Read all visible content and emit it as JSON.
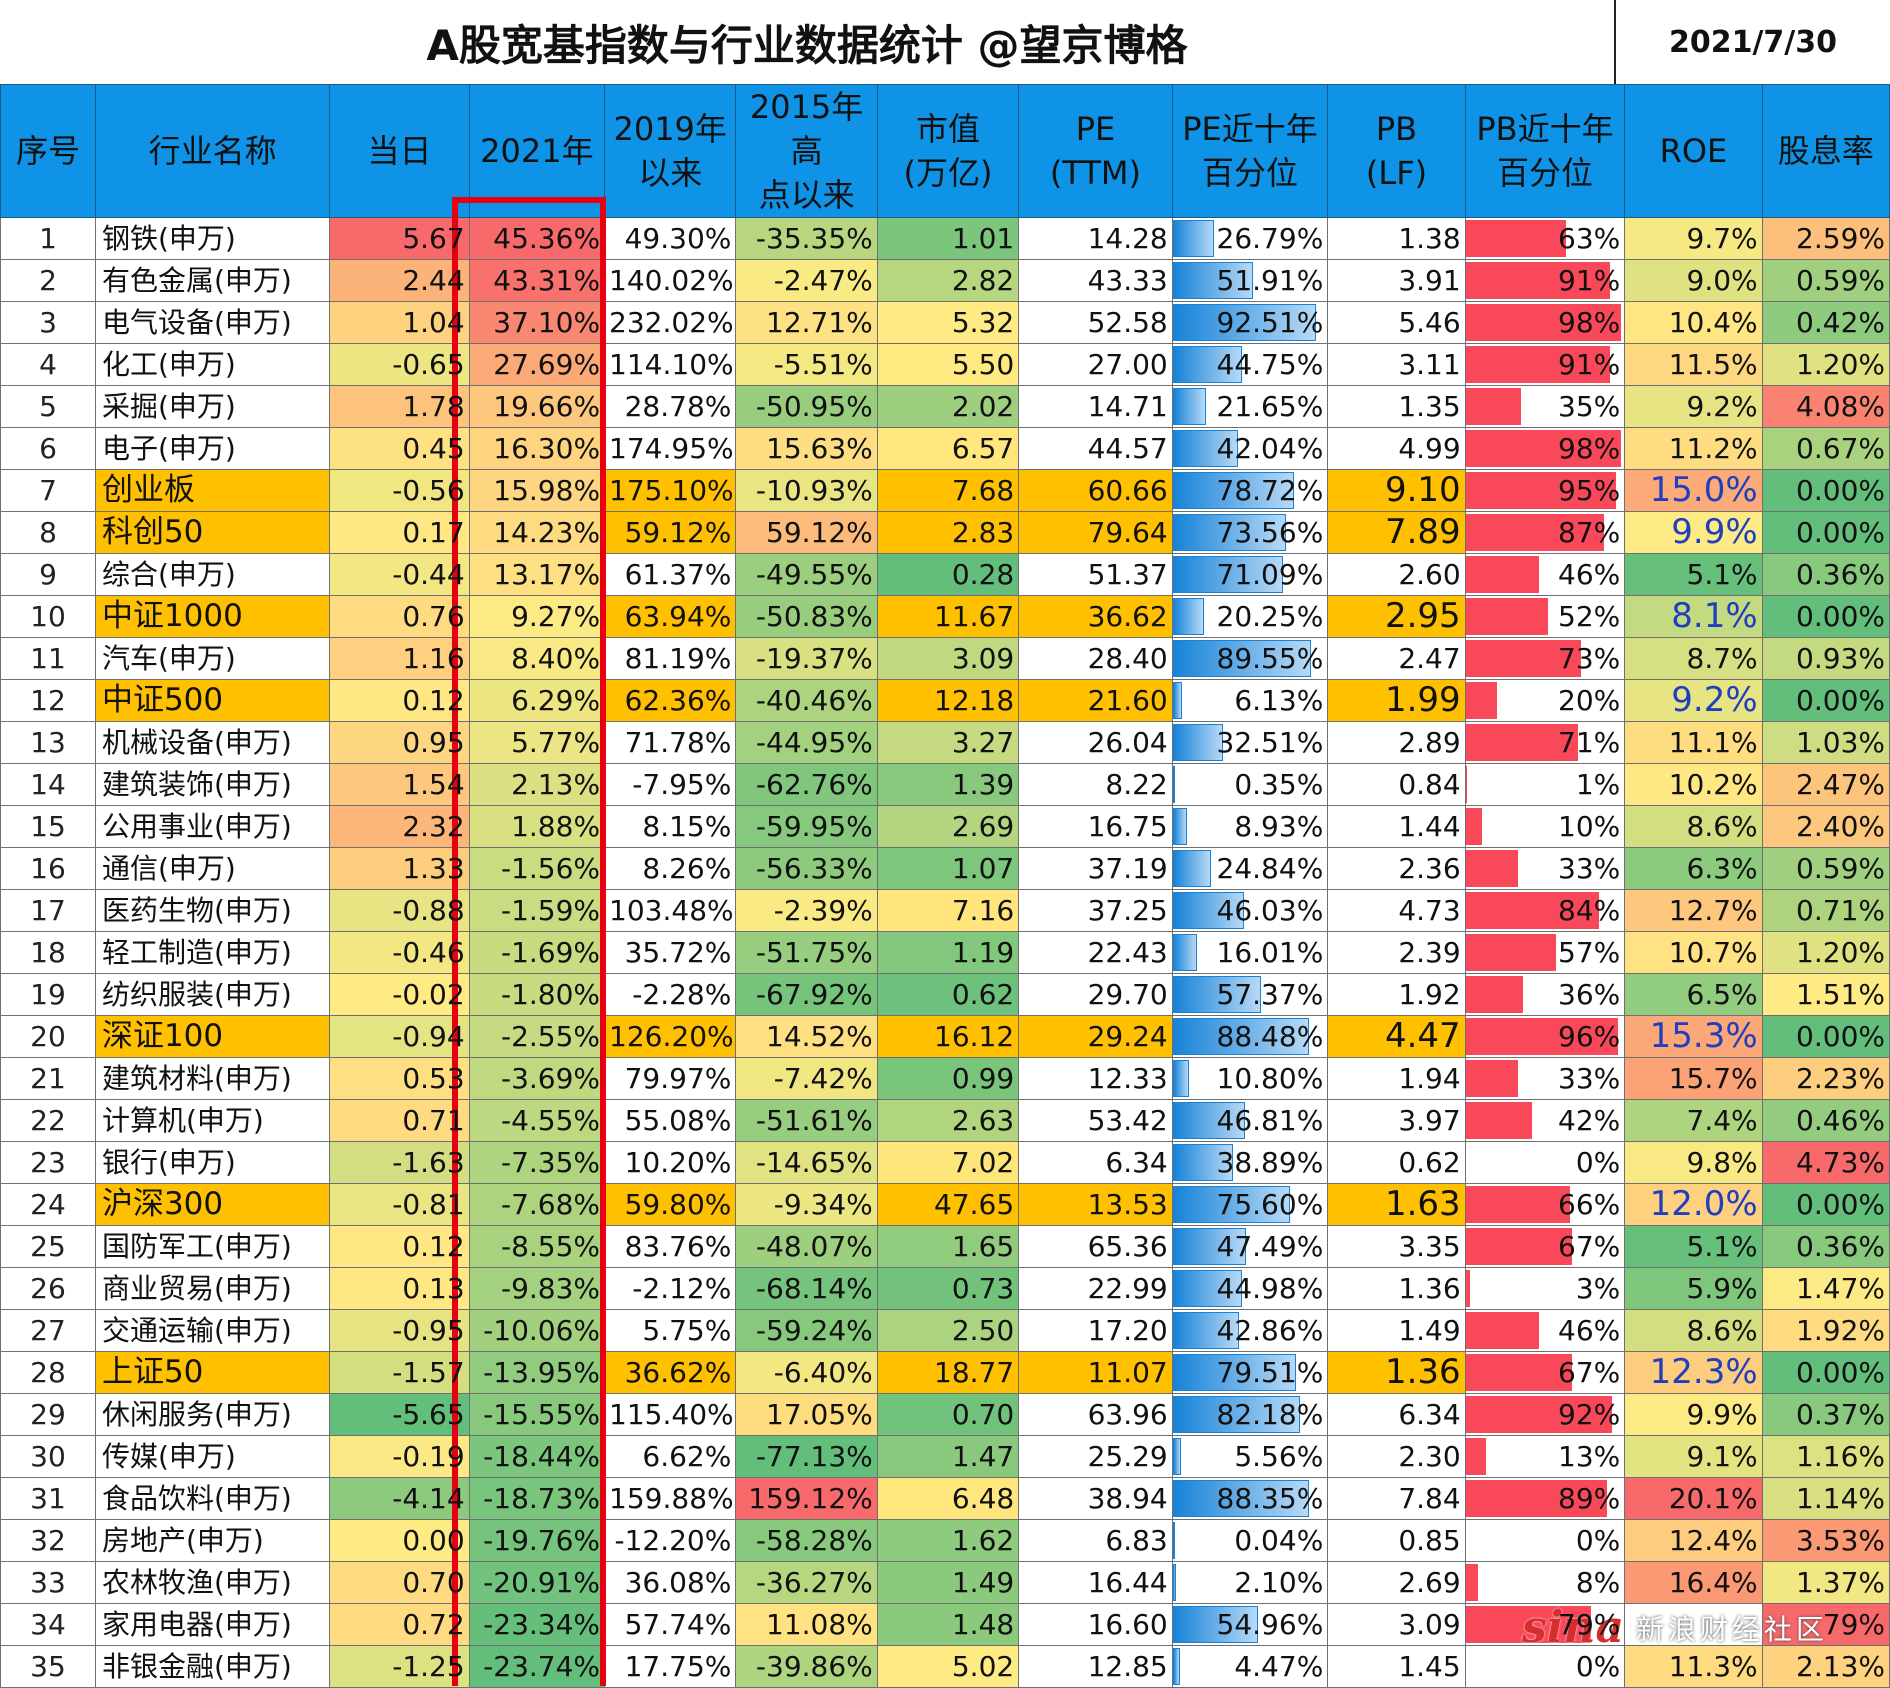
{
  "sheet": {
    "title": "A股宽基指数与行业数据统计  @望京博格",
    "date": "2021/7/30"
  },
  "headers": [
    [
      "序号"
    ],
    [
      "行业名称"
    ],
    [
      "当日"
    ],
    [
      "2021年"
    ],
    [
      "2019年",
      "以来"
    ],
    [
      "2015年高",
      "点以来"
    ],
    [
      "市值",
      "(万亿)"
    ],
    [
      "PE",
      "(TTM)"
    ],
    [
      "PE近十年",
      "百分位"
    ],
    [
      "PB",
      "(LF)"
    ],
    [
      "PB近十年",
      "百分位"
    ],
    [
      "ROE"
    ],
    [
      "股息率"
    ]
  ],
  "colors": {
    "header_bg": "#0f93e6",
    "index_highlight": "#ffc000",
    "frame": "#e60012",
    "pe_bar": "#1783d8",
    "pb_bar": "#f8485a"
  },
  "rows": [
    {
      "idx": "1",
      "name": "钢铁(申万)",
      "day": "5.67",
      "y2021": "45.36%",
      "s2019": "49.30%",
      "s2015": "-35.35%",
      "mcap": "1.01",
      "pe": "14.28",
      "pe_pct": "26.79%",
      "pb": "1.38",
      "pb_pct": "63%",
      "roe": "9.7%",
      "div": "2.59%"
    },
    {
      "idx": "2",
      "name": "有色金属(申万)",
      "day": "2.44",
      "y2021": "43.31%",
      "s2019": "140.02%",
      "s2015": "-2.47%",
      "mcap": "2.82",
      "pe": "43.33",
      "pe_pct": "51.91%",
      "pb": "3.91",
      "pb_pct": "91%",
      "roe": "9.0%",
      "div": "0.59%"
    },
    {
      "idx": "3",
      "name": "电气设备(申万)",
      "day": "1.04",
      "y2021": "37.10%",
      "s2019": "232.02%",
      "s2015": "12.71%",
      "mcap": "5.32",
      "pe": "52.58",
      "pe_pct": "92.51%",
      "pb": "5.46",
      "pb_pct": "98%",
      "roe": "10.4%",
      "div": "0.42%"
    },
    {
      "idx": "4",
      "name": "化工(申万)",
      "day": "-0.65",
      "y2021": "27.69%",
      "s2019": "114.10%",
      "s2015": "-5.51%",
      "mcap": "5.50",
      "pe": "27.00",
      "pe_pct": "44.75%",
      "pb": "3.11",
      "pb_pct": "91%",
      "roe": "11.5%",
      "div": "1.20%"
    },
    {
      "idx": "5",
      "name": "采掘(申万)",
      "day": "1.78",
      "y2021": "19.66%",
      "s2019": "28.78%",
      "s2015": "-50.95%",
      "mcap": "2.02",
      "pe": "14.71",
      "pe_pct": "21.65%",
      "pb": "1.35",
      "pb_pct": "35%",
      "roe": "9.2%",
      "div": "4.08%"
    },
    {
      "idx": "6",
      "name": "电子(申万)",
      "day": "0.45",
      "y2021": "16.30%",
      "s2019": "174.95%",
      "s2015": "15.63%",
      "mcap": "6.57",
      "pe": "44.57",
      "pe_pct": "42.04%",
      "pb": "4.99",
      "pb_pct": "98%",
      "roe": "11.2%",
      "div": "0.67%"
    },
    {
      "idx": "7",
      "name": "创业板",
      "day": "-0.56",
      "y2021": "15.98%",
      "s2019": "175.10%",
      "s2015": "-10.93%",
      "mcap": "7.68",
      "pe": "60.66",
      "pe_pct": "78.72%",
      "pb": "9.10",
      "pb_pct": "95%",
      "roe": "15.0%",
      "div": "0.00%"
    },
    {
      "idx": "8",
      "name": "科创50",
      "day": "0.17",
      "y2021": "14.23%",
      "s2019": "59.12%",
      "s2015": "59.12%",
      "mcap": "2.83",
      "pe": "79.64",
      "pe_pct": "73.56%",
      "pb": "7.89",
      "pb_pct": "87%",
      "roe": "9.9%",
      "div": "0.00%"
    },
    {
      "idx": "9",
      "name": "综合(申万)",
      "day": "-0.44",
      "y2021": "13.17%",
      "s2019": "61.37%",
      "s2015": "-49.55%",
      "mcap": "0.28",
      "pe": "51.37",
      "pe_pct": "71.09%",
      "pb": "2.60",
      "pb_pct": "46%",
      "roe": "5.1%",
      "div": "0.36%"
    },
    {
      "idx": "10",
      "name": "中证1000",
      "day": "0.76",
      "y2021": "9.27%",
      "s2019": "63.94%",
      "s2015": "-50.83%",
      "mcap": "11.67",
      "pe": "36.62",
      "pe_pct": "20.25%",
      "pb": "2.95",
      "pb_pct": "52%",
      "roe": "8.1%",
      "div": "0.00%"
    },
    {
      "idx": "11",
      "name": "汽车(申万)",
      "day": "1.16",
      "y2021": "8.40%",
      "s2019": "81.19%",
      "s2015": "-19.37%",
      "mcap": "3.09",
      "pe": "28.40",
      "pe_pct": "89.55%",
      "pb": "2.47",
      "pb_pct": "73%",
      "roe": "8.7%",
      "div": "0.93%"
    },
    {
      "idx": "12",
      "name": "中证500",
      "day": "0.12",
      "y2021": "6.29%",
      "s2019": "62.36%",
      "s2015": "-40.46%",
      "mcap": "12.18",
      "pe": "21.60",
      "pe_pct": "6.13%",
      "pb": "1.99",
      "pb_pct": "20%",
      "roe": "9.2%",
      "div": "0.00%"
    },
    {
      "idx": "13",
      "name": "机械设备(申万)",
      "day": "0.95",
      "y2021": "5.77%",
      "s2019": "71.78%",
      "s2015": "-44.95%",
      "mcap": "3.27",
      "pe": "26.04",
      "pe_pct": "32.51%",
      "pb": "2.89",
      "pb_pct": "71%",
      "roe": "11.1%",
      "div": "1.03%"
    },
    {
      "idx": "14",
      "name": "建筑装饰(申万)",
      "day": "1.54",
      "y2021": "2.13%",
      "s2019": "-7.95%",
      "s2015": "-62.76%",
      "mcap": "1.39",
      "pe": "8.22",
      "pe_pct": "0.35%",
      "pb": "0.84",
      "pb_pct": "1%",
      "roe": "10.2%",
      "div": "2.47%"
    },
    {
      "idx": "15",
      "name": "公用事业(申万)",
      "day": "2.32",
      "y2021": "1.88%",
      "s2019": "8.15%",
      "s2015": "-59.95%",
      "mcap": "2.69",
      "pe": "16.75",
      "pe_pct": "8.93%",
      "pb": "1.44",
      "pb_pct": "10%",
      "roe": "8.6%",
      "div": "2.40%"
    },
    {
      "idx": "16",
      "name": "通信(申万)",
      "day": "1.33",
      "y2021": "-1.56%",
      "s2019": "8.26%",
      "s2015": "-56.33%",
      "mcap": "1.07",
      "pe": "37.19",
      "pe_pct": "24.84%",
      "pb": "2.36",
      "pb_pct": "33%",
      "roe": "6.3%",
      "div": "0.59%"
    },
    {
      "idx": "17",
      "name": "医药生物(申万)",
      "day": "-0.88",
      "y2021": "-1.59%",
      "s2019": "103.48%",
      "s2015": "-2.39%",
      "mcap": "7.16",
      "pe": "37.25",
      "pe_pct": "46.03%",
      "pb": "4.73",
      "pb_pct": "84%",
      "roe": "12.7%",
      "div": "0.71%"
    },
    {
      "idx": "18",
      "name": "轻工制造(申万)",
      "day": "-0.46",
      "y2021": "-1.69%",
      "s2019": "35.72%",
      "s2015": "-51.75%",
      "mcap": "1.19",
      "pe": "22.43",
      "pe_pct": "16.01%",
      "pb": "2.39",
      "pb_pct": "57%",
      "roe": "10.7%",
      "div": "1.20%"
    },
    {
      "idx": "19",
      "name": "纺织服装(申万)",
      "day": "-0.02",
      "y2021": "-1.80%",
      "s2019": "-2.28%",
      "s2015": "-67.92%",
      "mcap": "0.62",
      "pe": "29.70",
      "pe_pct": "57.37%",
      "pb": "1.92",
      "pb_pct": "36%",
      "roe": "6.5%",
      "div": "1.51%"
    },
    {
      "idx": "20",
      "name": "深证100",
      "day": "-0.94",
      "y2021": "-2.55%",
      "s2019": "126.20%",
      "s2015": "14.52%",
      "mcap": "16.12",
      "pe": "29.24",
      "pe_pct": "88.48%",
      "pb": "4.47",
      "pb_pct": "96%",
      "roe": "15.3%",
      "div": "0.00%"
    },
    {
      "idx": "21",
      "name": "建筑材料(申万)",
      "day": "0.53",
      "y2021": "-3.69%",
      "s2019": "79.97%",
      "s2015": "-7.42%",
      "mcap": "0.99",
      "pe": "12.33",
      "pe_pct": "10.80%",
      "pb": "1.94",
      "pb_pct": "33%",
      "roe": "15.7%",
      "div": "2.23%"
    },
    {
      "idx": "22",
      "name": "计算机(申万)",
      "day": "0.71",
      "y2021": "-4.55%",
      "s2019": "55.08%",
      "s2015": "-51.61%",
      "mcap": "2.63",
      "pe": "53.42",
      "pe_pct": "46.81%",
      "pb": "3.97",
      "pb_pct": "42%",
      "roe": "7.4%",
      "div": "0.46%"
    },
    {
      "idx": "23",
      "name": "银行(申万)",
      "day": "-1.63",
      "y2021": "-7.35%",
      "s2019": "10.20%",
      "s2015": "-14.65%",
      "mcap": "7.02",
      "pe": "6.34",
      "pe_pct": "38.89%",
      "pb": "0.62",
      "pb_pct": "0%",
      "roe": "9.8%",
      "div": "4.73%"
    },
    {
      "idx": "24",
      "name": "沪深300",
      "day": "-0.81",
      "y2021": "-7.68%",
      "s2019": "59.80%",
      "s2015": "-9.34%",
      "mcap": "47.65",
      "pe": "13.53",
      "pe_pct": "75.60%",
      "pb": "1.63",
      "pb_pct": "66%",
      "roe": "12.0%",
      "div": "0.00%"
    },
    {
      "idx": "25",
      "name": "国防军工(申万)",
      "day": "0.12",
      "y2021": "-8.55%",
      "s2019": "83.76%",
      "s2015": "-48.07%",
      "mcap": "1.65",
      "pe": "65.36",
      "pe_pct": "47.49%",
      "pb": "3.35",
      "pb_pct": "67%",
      "roe": "5.1%",
      "div": "0.36%"
    },
    {
      "idx": "26",
      "name": "商业贸易(申万)",
      "day": "0.13",
      "y2021": "-9.83%",
      "s2019": "-2.12%",
      "s2015": "-68.14%",
      "mcap": "0.73",
      "pe": "22.99",
      "pe_pct": "44.98%",
      "pb": "1.36",
      "pb_pct": "3%",
      "roe": "5.9%",
      "div": "1.47%"
    },
    {
      "idx": "27",
      "name": "交通运输(申万)",
      "day": "-0.95",
      "y2021": "-10.06%",
      "s2019": "5.75%",
      "s2015": "-59.24%",
      "mcap": "2.50",
      "pe": "17.20",
      "pe_pct": "42.86%",
      "pb": "1.49",
      "pb_pct": "46%",
      "roe": "8.6%",
      "div": "1.92%"
    },
    {
      "idx": "28",
      "name": "上证50",
      "day": "-1.57",
      "y2021": "-13.95%",
      "s2019": "36.62%",
      "s2015": "-6.40%",
      "mcap": "18.77",
      "pe": "11.07",
      "pe_pct": "79.51%",
      "pb": "1.36",
      "pb_pct": "67%",
      "roe": "12.3%",
      "div": "0.00%"
    },
    {
      "idx": "29",
      "name": "休闲服务(申万)",
      "day": "-5.65",
      "y2021": "-15.55%",
      "s2019": "115.40%",
      "s2015": "17.05%",
      "mcap": "0.70",
      "pe": "63.96",
      "pe_pct": "82.18%",
      "pb": "6.34",
      "pb_pct": "92%",
      "roe": "9.9%",
      "div": "0.37%"
    },
    {
      "idx": "30",
      "name": "传媒(申万)",
      "day": "-0.19",
      "y2021": "-18.44%",
      "s2019": "6.62%",
      "s2015": "-77.13%",
      "mcap": "1.47",
      "pe": "25.29",
      "pe_pct": "5.56%",
      "pb": "2.30",
      "pb_pct": "13%",
      "roe": "9.1%",
      "div": "1.16%"
    },
    {
      "idx": "31",
      "name": "食品饮料(申万)",
      "day": "-4.14",
      "y2021": "-18.73%",
      "s2019": "159.88%",
      "s2015": "159.12%",
      "mcap": "6.48",
      "pe": "38.94",
      "pe_pct": "88.35%",
      "pb": "7.84",
      "pb_pct": "89%",
      "roe": "20.1%",
      "div": "1.14%"
    },
    {
      "idx": "32",
      "name": "房地产(申万)",
      "day": "0.00",
      "y2021": "-19.76%",
      "s2019": "-12.20%",
      "s2015": "-58.28%",
      "mcap": "1.62",
      "pe": "6.83",
      "pe_pct": "0.04%",
      "pb": "0.85",
      "pb_pct": "0%",
      "roe": "12.4%",
      "div": "3.53%"
    },
    {
      "idx": "33",
      "name": "农林牧渔(申万)",
      "day": "0.70",
      "y2021": "-20.91%",
      "s2019": "36.08%",
      "s2015": "-36.27%",
      "mcap": "1.49",
      "pe": "16.44",
      "pe_pct": "2.10%",
      "pb": "2.69",
      "pb_pct": "8%",
      "roe": "16.4%",
      "div": "1.37%"
    },
    {
      "idx": "34",
      "name": "家用电器(申万)",
      "day": "0.72",
      "y2021": "-23.34%",
      "s2019": "57.74%",
      "s2015": "11.08%",
      "mcap": "1.48",
      "pe": "16.60",
      "pe_pct": "54.96%",
      "pb": "3.09",
      "pb_pct": "79%",
      "roe": "",
      "div": "79%"
    },
    {
      "idx": "35",
      "name": "非银金融(申万)",
      "day": "-1.25",
      "y2021": "-23.74%",
      "s2019": "17.75%",
      "s2015": "-39.86%",
      "mcap": "5.02",
      "pe": "12.85",
      "pe_pct": "4.47%",
      "pb": "1.45",
      "pb_pct": "0%",
      "roe": "11.3%",
      "div": "2.13%"
    }
  ],
  "watermark": {
    "logo": "sina",
    "text": "新浪财经社区"
  }
}
